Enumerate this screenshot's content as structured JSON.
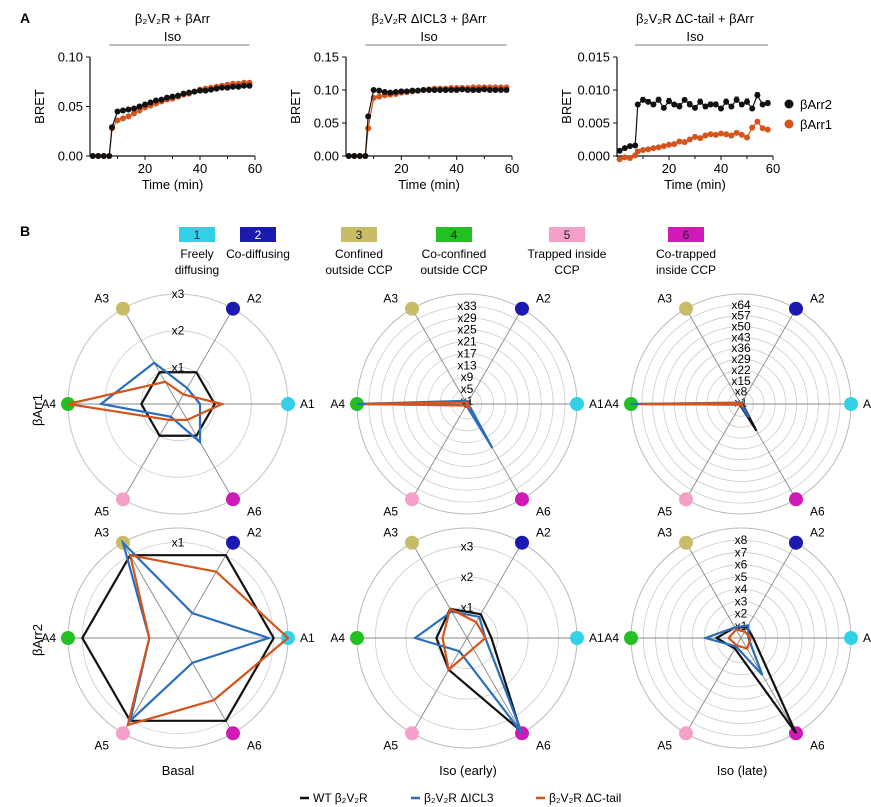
{
  "panelA": {
    "letter": "A",
    "plots": [
      {
        "title_main": "β₂V₂R + βArr",
        "iso_label": "Iso",
        "ylabel": "BRET",
        "xlabel": "Time (min)",
        "ylim": [
          0,
          0.1
        ],
        "yticks": [
          "0.00",
          "0.05",
          "0.10"
        ],
        "ytick_values": [
          0,
          0.05,
          0.1
        ],
        "xticks": [
          "20",
          "40",
          "60"
        ],
        "xtick_values": [
          20,
          40,
          60
        ],
        "xlim": [
          0,
          60
        ],
        "iso_range": [
          7,
          58
        ]
      },
      {
        "title_main": "β₂V₂R ΔICL3 + βArr",
        "iso_label": "Iso",
        "ylabel": "BRET",
        "xlabel": "Time (min)",
        "ylim": [
          0,
          0.15
        ],
        "yticks": [
          "0.00",
          "0.05",
          "0.10",
          "0.15"
        ],
        "ytick_values": [
          0,
          0.05,
          0.1,
          0.15
        ],
        "xticks": [
          "20",
          "40",
          "60"
        ],
        "xtick_values": [
          20,
          40,
          60
        ],
        "xlim": [
          0,
          60
        ],
        "iso_range": [
          7,
          58
        ]
      },
      {
        "title_main": "β₂V₂R ΔC-tail + βArr",
        "iso_label": "Iso",
        "ylabel": "BRET",
        "xlabel": "Time (min)",
        "ylim": [
          0,
          0.015
        ],
        "yticks": [
          "0.000",
          "0.005",
          "0.010",
          "0.015"
        ],
        "ytick_values": [
          0,
          0.005,
          0.01,
          0.015
        ],
        "xticks": [
          "20",
          "40",
          "60"
        ],
        "xtick_values": [
          20,
          40,
          60
        ],
        "xlim": [
          0,
          60
        ],
        "iso_range": [
          7,
          58
        ]
      }
    ],
    "legend": [
      {
        "name": "βArr2",
        "color": "#111111"
      },
      {
        "name": "βArr1",
        "color": "#d4541c"
      }
    ]
  },
  "panelB": {
    "letter": "B",
    "states": [
      {
        "num": "1",
        "label1": "Freely",
        "label2": "diffusing",
        "color": "#33d1e8"
      },
      {
        "num": "2",
        "label1": "Co-diffusing",
        "label2": "",
        "color": "#1a1ab0"
      },
      {
        "num": "3",
        "label1": "Confined",
        "label2": "outside CCP",
        "color": "#c8bc68"
      },
      {
        "num": "4",
        "label1": "Co-confined",
        "label2": "outside CCP",
        "color": "#22c022"
      },
      {
        "num": "5",
        "label1": "Trapped inside",
        "label2": "CCP",
        "color": "#f4a0c8"
      },
      {
        "num": "6",
        "label1": "Co-trapped",
        "label2": "inside CCP",
        "color": "#d01ab8"
      }
    ],
    "row_labels": [
      "βArr1",
      "βArr2"
    ],
    "col_labels": [
      "Basal",
      "Iso (early)",
      "Iso (late)"
    ],
    "axes": [
      "A1",
      "A2",
      "A3",
      "A4",
      "A5",
      "A6"
    ],
    "series_colors": {
      "WT": "#111111",
      "ICL3": "#2a6ebd",
      "Ctail": "#d4541c"
    },
    "legend": [
      {
        "name": "WT β₂V₂R",
        "color": "#111111"
      },
      {
        "name": "β₂V₂R ΔICL3",
        "color": "#2a6ebd"
      },
      {
        "name": "β₂V₂R ΔC-tail",
        "color": "#d4541c"
      }
    ]
  },
  "chart_data": [
    {
      "type": "line",
      "title": "β₂V₂R + βArr",
      "xlabel": "Time (min)",
      "ylabel": "BRET",
      "ylim": [
        0,
        0.1
      ],
      "x": [
        1,
        3,
        5,
        7,
        8,
        10,
        12,
        14,
        16,
        18,
        20,
        22,
        24,
        26,
        28,
        30,
        32,
        34,
        36,
        38,
        40,
        42,
        44,
        46,
        48,
        50,
        52,
        54,
        56,
        58
      ],
      "series": [
        {
          "name": "βArr2",
          "values": [
            0,
            0,
            0,
            0,
            0.029,
            0.045,
            0.046,
            0.047,
            0.048,
            0.05,
            0.052,
            0.054,
            0.056,
            0.057,
            0.059,
            0.06,
            0.061,
            0.063,
            0.064,
            0.065,
            0.066,
            0.066,
            0.067,
            0.068,
            0.069,
            0.069,
            0.07,
            0.07,
            0.071,
            0.071
          ]
        },
        {
          "name": "βArr1",
          "values": [
            0,
            0,
            0,
            0,
            0.028,
            0.036,
            0.038,
            0.04,
            0.043,
            0.046,
            0.049,
            0.051,
            0.053,
            0.055,
            0.057,
            0.058,
            0.06,
            0.062,
            0.063,
            0.065,
            0.067,
            0.068,
            0.069,
            0.07,
            0.071,
            0.072,
            0.073,
            0.073,
            0.074,
            0.074
          ]
        }
      ]
    },
    {
      "type": "line",
      "title": "β₂V₂R ΔICL3 + βArr",
      "xlabel": "Time (min)",
      "ylabel": "BRET",
      "ylim": [
        0,
        0.15
      ],
      "x": [
        1,
        3,
        5,
        7,
        8,
        10,
        12,
        14,
        16,
        18,
        20,
        22,
        24,
        26,
        28,
        30,
        32,
        34,
        36,
        38,
        40,
        42,
        44,
        46,
        48,
        50,
        52,
        54,
        56,
        58
      ],
      "series": [
        {
          "name": "βArr2",
          "values": [
            0,
            0,
            0,
            0,
            0.06,
            0.1,
            0.099,
            0.097,
            0.096,
            0.097,
            0.098,
            0.098,
            0.099,
            0.099,
            0.1,
            0.1,
            0.1,
            0.1,
            0.1,
            0.1,
            0.1,
            0.101,
            0.1,
            0.1,
            0.1,
            0.101,
            0.1,
            0.1,
            0.1,
            0.1
          ]
        },
        {
          "name": "βArr1",
          "values": [
            0,
            0,
            0,
            0,
            0.042,
            0.088,
            0.09,
            0.092,
            0.093,
            0.094,
            0.096,
            0.097,
            0.098,
            0.099,
            0.1,
            0.101,
            0.102,
            0.102,
            0.102,
            0.103,
            0.103,
            0.103,
            0.103,
            0.104,
            0.104,
            0.104,
            0.104,
            0.104,
            0.104,
            0.104
          ]
        }
      ]
    },
    {
      "type": "line",
      "title": "β₂V₂R ΔC-tail + βArr",
      "xlabel": "Time (min)",
      "ylabel": "BRET",
      "ylim": [
        0,
        0.015
      ],
      "x": [
        1,
        3,
        5,
        7,
        8,
        10,
        12,
        14,
        16,
        18,
        20,
        22,
        24,
        26,
        28,
        30,
        32,
        34,
        36,
        38,
        40,
        42,
        44,
        46,
        48,
        50,
        52,
        54,
        56,
        58
      ],
      "series": [
        {
          "name": "βArr2",
          "values": [
            0.0008,
            0.0012,
            0.0015,
            0.0016,
            0.0078,
            0.0085,
            0.0082,
            0.0078,
            0.0085,
            0.0073,
            0.0083,
            0.0078,
            0.0075,
            0.0085,
            0.0078,
            0.0073,
            0.0082,
            0.0075,
            0.0078,
            0.0078,
            0.0072,
            0.0082,
            0.0075,
            0.0085,
            0.0078,
            0.0082,
            0.0072,
            0.0092,
            0.0078,
            0.008
          ]
        },
        {
          "name": "βArr1",
          "values": [
            -0.0005,
            -0.0002,
            -0.0003,
            0.0001,
            0.0007,
            0.0009,
            0.001,
            0.0012,
            0.0013,
            0.0015,
            0.0017,
            0.0018,
            0.0022,
            0.0021,
            0.0025,
            0.0029,
            0.0027,
            0.0031,
            0.0033,
            0.0032,
            0.0034,
            0.0033,
            0.0031,
            0.0035,
            0.0032,
            0.0028,
            0.0043,
            0.0052,
            0.0042,
            0.004
          ]
        }
      ]
    },
    {
      "type": "radar",
      "title": "βArr1 Basal",
      "axes": [
        "A1",
        "A2",
        "A3",
        "A4",
        "A5",
        "A6"
      ],
      "rings": [
        "x1",
        "x2",
        "x3"
      ],
      "rmax": 3,
      "series": [
        {
          "name": "WT β₂V₂R",
          "values": [
            1,
            1,
            1,
            1,
            1,
            1
          ]
        },
        {
          "name": "β₂V₂R ΔICL3",
          "values": [
            0.6,
            0.5,
            1.3,
            2.1,
            0.4,
            1.2
          ]
        },
        {
          "name": "β₂V₂R ΔC-tail",
          "values": [
            1.2,
            0.3,
            0.7,
            3.0,
            0.5,
            0.5
          ]
        }
      ]
    },
    {
      "type": "radar",
      "title": "βArr1 Iso (early)",
      "axes": [
        "A1",
        "A2",
        "A3",
        "A4",
        "A5",
        "A6"
      ],
      "rings": [
        "x1",
        "x5",
        "x9",
        "x13",
        "x17",
        "x21",
        "x25",
        "x29",
        "x33"
      ],
      "rmax": 37,
      "series": [
        {
          "name": "WT β₂V₂R",
          "values": [
            1,
            1,
            1,
            1,
            1,
            1
          ]
        },
        {
          "name": "β₂V₂R ΔICL3",
          "values": [
            0.5,
            0.8,
            1.2,
            37,
            0.5,
            17
          ]
        },
        {
          "name": "β₂V₂R ΔC-tail",
          "values": [
            0.5,
            0.6,
            0.7,
            34,
            0.6,
            1.5
          ]
        }
      ]
    },
    {
      "type": "radar",
      "title": "βArr1 Iso (late)",
      "axes": [
        "A1",
        "A2",
        "A3",
        "A4",
        "A5",
        "A6"
      ],
      "rings": [
        "x1",
        "x8",
        "x15",
        "x22",
        "x29",
        "x36",
        "x43",
        "x50",
        "x57",
        "x64"
      ],
      "rmax": 71,
      "series": [
        {
          "name": "WT β₂V₂R",
          "values": [
            1,
            1,
            1,
            1,
            1,
            20
          ]
        },
        {
          "name": "β₂V₂R ΔICL3",
          "values": [
            0.5,
            0.8,
            1,
            71,
            0.5,
            10
          ]
        },
        {
          "name": "β₂V₂R ΔC-tail",
          "values": [
            0.5,
            0.5,
            0.7,
            65,
            0.5,
            1.5
          ]
        }
      ]
    },
    {
      "type": "radar",
      "title": "βArr2 Basal",
      "axes": [
        "A1",
        "A2",
        "A3",
        "A4",
        "A5",
        "A6"
      ],
      "rings": [
        "x1"
      ],
      "rmax": 1.15,
      "series": [
        {
          "name": "WT β₂V₂R",
          "values": [
            1,
            1,
            1,
            1,
            1,
            1
          ]
        },
        {
          "name": "β₂V₂R ΔICL3",
          "values": [
            0.95,
            0.3,
            1.15,
            0.3,
            1.0,
            0.3
          ]
        },
        {
          "name": "β₂V₂R ΔC-tail",
          "values": [
            1.15,
            0.8,
            1.0,
            0.3,
            1.05,
            0.75
          ]
        }
      ]
    },
    {
      "type": "radar",
      "title": "βArr2 Iso (early)",
      "axes": [
        "A1",
        "A2",
        "A3",
        "A4",
        "A5",
        "A6"
      ],
      "rings": [
        "x1",
        "x2",
        "x3"
      ],
      "rmax": 3.6,
      "series": [
        {
          "name": "WT β₂V₂R",
          "values": [
            0.8,
            0.9,
            1.1,
            1.0,
            1.2,
            3.5
          ]
        },
        {
          "name": "β₂V₂R ΔICL3",
          "values": [
            0.6,
            0.8,
            1.0,
            1.7,
            0.5,
            3.6
          ]
        },
        {
          "name": "β₂V₂R ΔC-tail",
          "values": [
            0.6,
            0.6,
            1.1,
            0.8,
            1.2,
            0.4
          ]
        }
      ]
    },
    {
      "type": "radar",
      "title": "βArr2 Iso (late)",
      "axes": [
        "A1",
        "A2",
        "A3",
        "A4",
        "A5",
        "A6"
      ],
      "rings": [
        "x1",
        "x2",
        "x3",
        "x4",
        "x5",
        "x6",
        "x7",
        "x8"
      ],
      "rmax": 9,
      "series": [
        {
          "name": "WT β₂V₂R",
          "values": [
            1,
            1,
            1,
            2,
            1,
            9
          ]
        },
        {
          "name": "β₂V₂R ΔICL3",
          "values": [
            0.6,
            1.2,
            1.0,
            2.9,
            0.8,
            3.5
          ]
        },
        {
          "name": "β₂V₂R ΔC-tail",
          "values": [
            0.8,
            0.6,
            0.8,
            1.0,
            0.7,
            1.0
          ]
        }
      ]
    }
  ]
}
